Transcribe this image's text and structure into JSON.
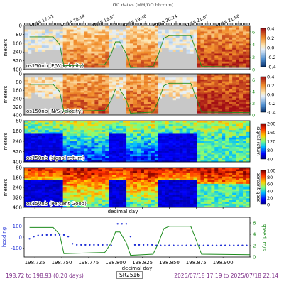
{
  "header": {
    "utc_label": "UTC dates (MM/DD hh:mm)"
  },
  "top_ticks": [
    "07/18 17:31",
    "07/18 18:14",
    "07/18 18:57",
    "07/18 19:40",
    "07/18 20:24",
    "07/18 21:07",
    "07/18 21:50"
  ],
  "footer": {
    "left": "198.72 to 198.93 (0.20 days)",
    "middle": "SR2516",
    "right": "2025/07/18 17:19 to 2025/07/18 22:14"
  },
  "colors": {
    "footer_text": "#7b2a86",
    "speed_line": "#1e8c1e",
    "heading": "#1f2fd6",
    "no_data": "#c8c8c8"
  },
  "chart_data": [
    {
      "type": "heatmap",
      "title": "os150nb (E/W velocity)",
      "ylabel": "meters",
      "yticks": [
        "0",
        "80",
        "160",
        "240",
        "320",
        "400"
      ],
      "colorbar_ticks": [
        "0.4",
        "0.2",
        "0.0",
        "-0.2",
        "-0.4"
      ],
      "colorbar_range": [
        -0.4,
        0.4
      ],
      "right_axis_ticks": [
        "6",
        "4",
        "2",
        "0"
      ],
      "right_axis_range": [
        0,
        7
      ],
      "colormap": "diverging"
    },
    {
      "type": "heatmap",
      "title": "os150nb (N/S velocity)",
      "ylabel": "meters",
      "yticks": [
        "0",
        "80",
        "160",
        "240",
        "320",
        "400"
      ],
      "colorbar_ticks": [
        "0.4",
        "0.2",
        "0.0",
        "-0.2",
        "-0.4"
      ],
      "colorbar_range": [
        -0.4,
        0.4
      ],
      "right_axis_ticks": [
        "6",
        "4",
        "2",
        "0"
      ],
      "right_axis_range": [
        0,
        7
      ],
      "colormap": "diverging"
    },
    {
      "type": "heatmap",
      "title": "os150nb (signal return)",
      "ylabel": "meters",
      "yticks": [
        "80",
        "160",
        "240",
        "320",
        "400"
      ],
      "colorbar_ticks": [
        "200",
        "160",
        "120",
        "80",
        "40"
      ],
      "colorbar_range": [
        20,
        200
      ],
      "colorbar_label": "signal return",
      "colormap": "jet"
    },
    {
      "type": "heatmap",
      "title": "os150nb (Percent Good)",
      "ylabel": "meters",
      "yticks": [
        "80",
        "160",
        "240",
        "320",
        "400"
      ],
      "xlabel": "decimal day",
      "colorbar_ticks": [
        "100",
        "80",
        "60",
        "40",
        "20",
        "0"
      ],
      "colorbar_range": [
        0,
        100
      ],
      "colorbar_label": "percent good",
      "colormap": "jet"
    },
    {
      "type": "line",
      "ylabel": "heading",
      "yticks_left": [
        "100",
        "0",
        "-100"
      ],
      "ylim_left": [
        -180,
        180
      ],
      "ylabel_right": "speed, m/s",
      "yticks_right": [
        "6",
        "4",
        "2",
        "0"
      ],
      "ylim_right": [
        0,
        7
      ],
      "xlabel": "decimal day",
      "xticks": [
        "198.725",
        "198.750",
        "198.775",
        "198.800",
        "198.825",
        "198.850",
        "198.875",
        "198.900"
      ],
      "xlim": [
        198.715,
        198.925
      ],
      "series": [
        {
          "name": "speed",
          "x": [
            198.72,
            198.735,
            198.742,
            198.748,
            198.752,
            198.79,
            198.796,
            198.8,
            198.804,
            198.81,
            198.814,
            198.835,
            198.84,
            198.845,
            198.85,
            198.87,
            198.875,
            198.88,
            198.925
          ],
          "y": [
            5.2,
            5.2,
            5.2,
            4.0,
            0.6,
            0.8,
            2.5,
            4.4,
            4.4,
            2.5,
            0.3,
            0.5,
            2.5,
            5.0,
            5.4,
            5.4,
            3.0,
            0.5,
            0.4
          ]
        },
        {
          "name": "heading",
          "x": [
            198.72,
            198.724,
            198.728,
            198.732,
            198.736,
            198.74,
            198.744,
            198.748,
            198.752,
            198.756,
            198.76,
            198.764,
            198.768,
            198.772,
            198.776,
            198.78,
            198.784,
            198.788,
            198.792,
            198.796,
            198.802,
            198.806,
            198.81,
            198.814,
            198.818,
            198.822,
            198.826,
            198.83,
            198.834,
            198.838,
            198.842,
            198.846,
            198.85,
            198.854,
            198.858,
            198.862,
            198.866,
            198.87,
            198.874,
            198.878,
            198.882,
            198.886,
            198.89,
            198.894,
            198.898,
            198.902,
            198.906,
            198.91,
            198.914,
            198.918,
            198.922
          ],
          "y": [
            -15,
            5,
            15,
            18,
            20,
            20,
            20,
            20,
            20,
            5,
            -60,
            -70,
            -70,
            -70,
            -70,
            -70,
            -70,
            -70,
            -70,
            -75,
            120,
            120,
            120,
            5,
            -70,
            -70,
            -70,
            -70,
            -70,
            -75,
            -75,
            -75,
            -75,
            -75,
            -75,
            -75,
            -75,
            -75,
            -75,
            -75,
            -75,
            -75,
            -75,
            -75,
            -75,
            -75,
            -75,
            -75,
            -75,
            -75,
            -75
          ]
        }
      ]
    }
  ]
}
